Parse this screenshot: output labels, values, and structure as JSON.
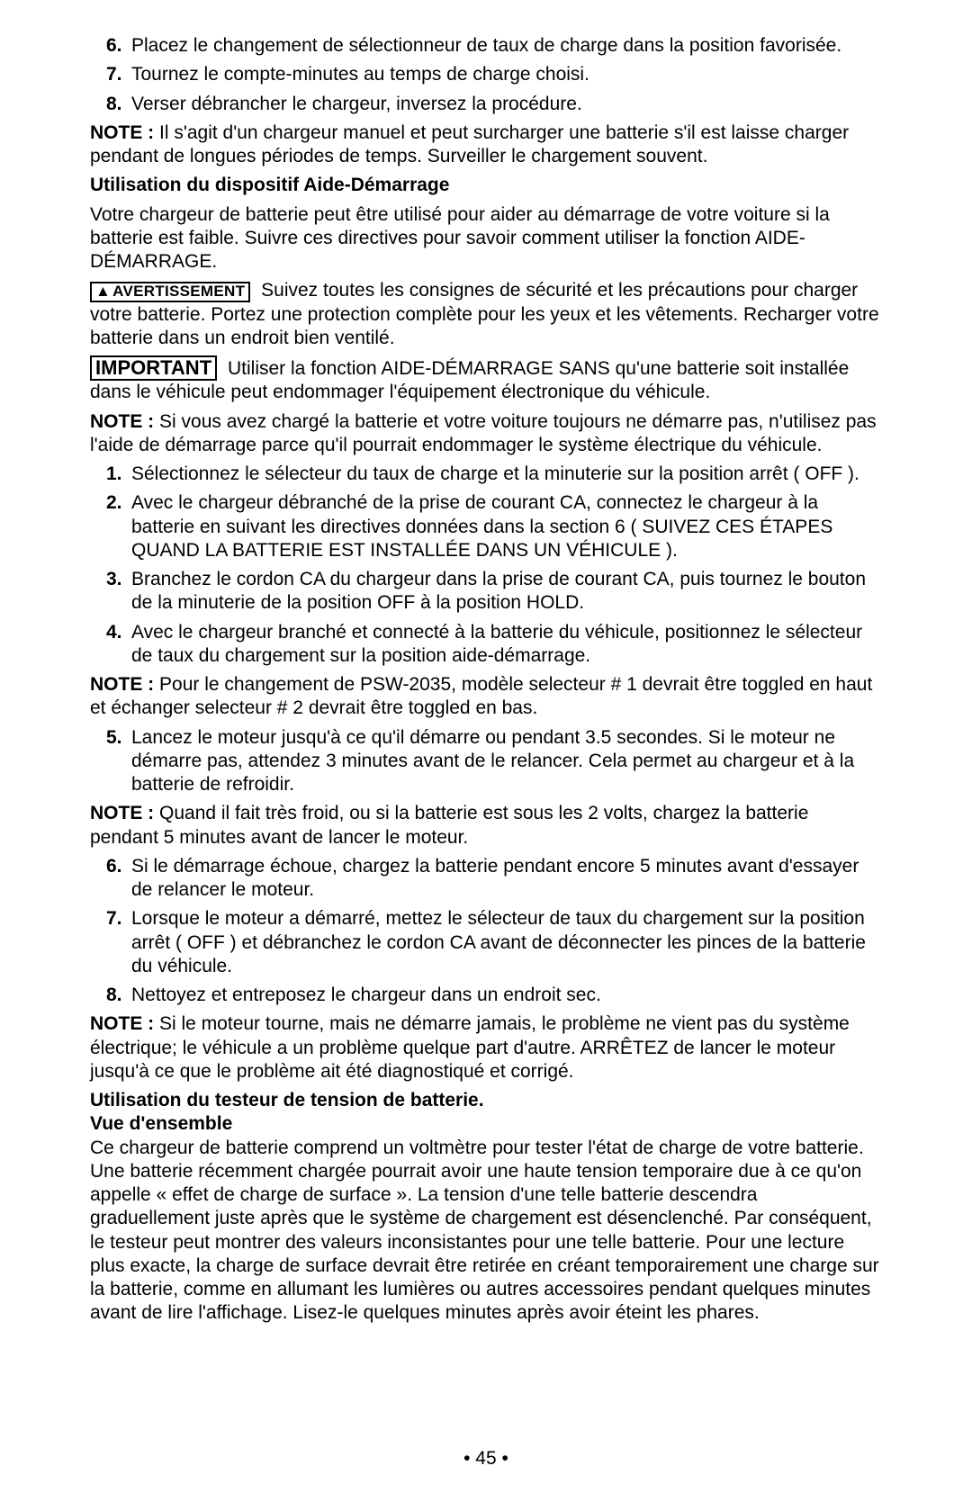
{
  "list1": {
    "i6": {
      "n": "6.",
      "t": "Placez le changement de sélectionneur de taux de charge dans la position favorisée."
    },
    "i7": {
      "n": "7.",
      "t": "Tournez le compte-minutes au temps de charge choisi."
    },
    "i8": {
      "n": "8.",
      "t": "Verser débrancher le chargeur, inversez la procédure."
    }
  },
  "note1": {
    "label": "NOTE :",
    "text": " Il s'agit d'un chargeur manuel et peut surcharger une batterie s'il est laisse charger pendant de longues périodes de temps. Surveiller le chargement souvent."
  },
  "heading1": "Utilisation du dispositif Aide-Démarrage",
  "para1": "Votre chargeur de batterie peut être utilisé pour aider au démarrage de votre voiture si la batterie est faible. Suivre ces directives pour savoir comment utiliser la fonction AIDE-DÉMARRAGE.",
  "badge_avert": "AVERTISSEMENT",
  "para2": "Suivez toutes les consignes de sécurité et les précautions pour charger votre batterie. Portez une protection complète pour les yeux et les vêtements. Recharger votre batterie dans un endroit bien ventilé.",
  "badge_imp": "IMPORTANT",
  "para3": "Utiliser la fonction AIDE-DÉMARRAGE SANS qu'une batterie soit installée dans le véhicule peut endommager l'équipement électronique du véhicule.",
  "note2": {
    "label": "NOTE :",
    "text": " Si vous avez chargé la batterie et votre voiture toujours ne démarre pas, n'utilisez pas l'aide de démarrage parce qu'il pourrait endommager le système électrique du véhicule."
  },
  "list2": {
    "i1": {
      "n": "1.",
      "t": "Sélectionnez le sélecteur du taux de charge et la minuterie sur la position arrêt ( OFF )."
    },
    "i2": {
      "n": "2.",
      "t": "Avec le chargeur débranché de la prise de courant CA, connectez le chargeur à la batterie en suivant les directives données dans la section 6 ( SUIVEZ CES ÉTAPES QUAND LA BATTERIE EST INSTALLÉE DANS UN VÉHICULE )."
    },
    "i3": {
      "n": "3.",
      "t": "Branchez le cordon CA du chargeur dans la prise de courant CA, puis tournez le bouton de la minuterie de la position OFF à la position HOLD."
    },
    "i4": {
      "n": "4.",
      "t": "Avec le chargeur branché et connecté à la batterie du véhicule, positionnez le sélecteur de taux du chargement sur la position aide-démarrage."
    }
  },
  "note3": {
    "label": "NOTE :",
    "text": " Pour le changement de PSW-2035, modèle selecteur # 1 devrait être toggled en haut et échanger  selecteur  # 2 devrait être toggled en bas."
  },
  "list3": {
    "i5": {
      "n": "5.",
      "t": "Lancez le moteur jusqu'à ce qu'il démarre ou pendant 3.5 secondes. Si le moteur ne démarre pas, attendez 3 minutes avant de le relancer. Cela permet au chargeur et à la batterie de refroidir."
    }
  },
  "note4": {
    "label": "NOTE :",
    "text": " Quand il fait très froid, ou si la batterie est sous les 2 volts, chargez la batterie pendant 5 minutes avant de lancer le moteur."
  },
  "list4": {
    "i6": {
      "n": "6.",
      "t": "Si le démarrage échoue, chargez la batterie pendant encore 5 minutes avant d'essayer de relancer le moteur."
    },
    "i7": {
      "n": "7.",
      "t": "Lorsque le moteur a démarré, mettez le sélecteur de taux du chargement sur la position arrêt ( OFF ) et débranchez le cordon CA avant de déconnecter les pinces de la batterie du véhicule."
    },
    "i8": {
      "n": "8.",
      "t": "Nettoyez et entreposez le chargeur dans un endroit sec."
    }
  },
  "note5": {
    "label": "NOTE :",
    "text": " Si le moteur tourne, mais ne démarre jamais, le problème ne vient pas du système électrique; le véhicule a un problème quelque part d'autre. ARRÊTEZ de lancer le moteur jusqu'à ce que le problème ait été diagnostiqué et corrigé."
  },
  "heading2a": "Utilisation du testeur de tension de batterie.",
  "heading2b": "Vue d'ensemble",
  "para4": "Ce chargeur de batterie comprend un voltmètre pour tester l'état de charge de votre batterie. Une batterie récemment chargée pourrait avoir une haute tension temporaire due à ce qu'on appelle « effet de charge de surface ». La tension d'une telle batterie descendra graduellement juste après que le système de chargement est désenclenché. Par conséquent, le testeur peut montrer des valeurs inconsistantes pour une telle batterie. Pour une lecture plus exacte, la charge de surface devrait être retirée en créant temporairement une charge sur la batterie, comme en allumant les lumières ou autres accessoires pendant quelques minutes avant de lire l'affichage. Lisez-le quelques minutes après avoir éteint les phares.",
  "footer": "• 45 •"
}
